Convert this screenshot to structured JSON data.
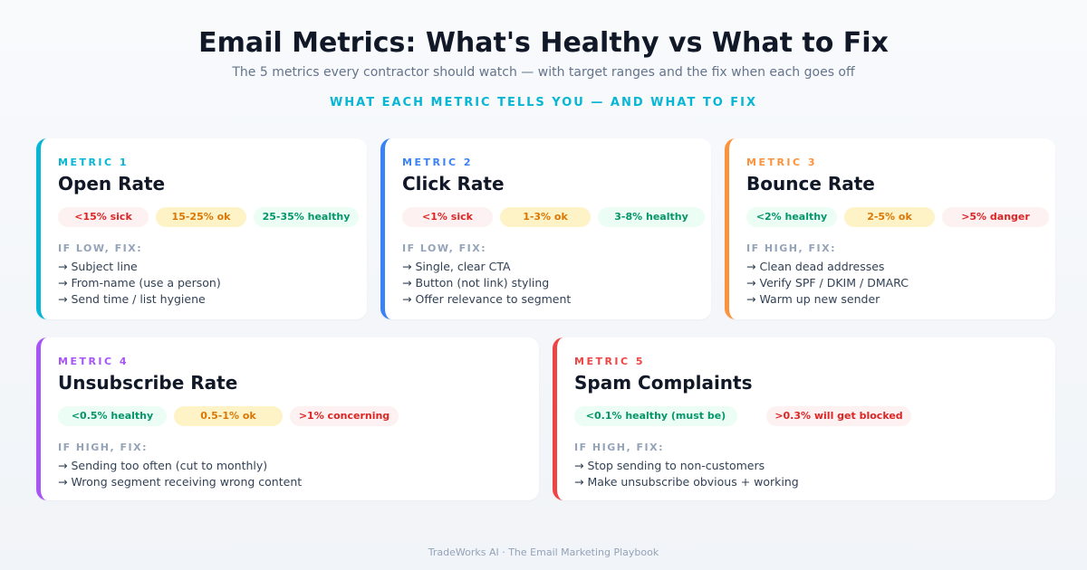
{
  "header": {
    "title": "Email Metrics: What's Healthy vs What to Fix",
    "subtitle": "The 5 metrics every contractor should watch — with target ranges and the fix when each goes off",
    "section_label": "WHAT EACH METRIC TELLS YOU — AND WHAT TO FIX"
  },
  "colors": {
    "metric1": "#06b6d4",
    "metric2": "#3b82f6",
    "metric3": "#fb923c",
    "metric4": "#a855f7",
    "metric5": "#ef4444",
    "sick": "#dc2626",
    "ok": "#d97706",
    "healthy": "#059669"
  },
  "metrics": [
    {
      "kicker": "METRIC 1",
      "title": "Open Rate",
      "pills": [
        "<15% sick",
        "15-25% ok",
        "25-35% healthy"
      ],
      "fix_label": "IF LOW, FIX:",
      "fixes": [
        "Subject line",
        "From-name (use a person)",
        "Send time / list hygiene"
      ]
    },
    {
      "kicker": "METRIC 2",
      "title": "Click Rate",
      "pills": [
        "<1% sick",
        "1-3% ok",
        "3-8% healthy"
      ],
      "fix_label": "IF LOW, FIX:",
      "fixes": [
        "Single, clear CTA",
        "Button (not link) styling",
        "Offer relevance to segment"
      ]
    },
    {
      "kicker": "METRIC 3",
      "title": "Bounce Rate",
      "pills": [
        "<2% healthy",
        "2-5% ok",
        ">5% danger"
      ],
      "fix_label": "IF HIGH, FIX:",
      "fixes": [
        "Clean dead addresses",
        "Verify SPF / DKIM / DMARC",
        "Warm up new sender"
      ]
    },
    {
      "kicker": "METRIC 4",
      "title": "Unsubscribe Rate",
      "pills": [
        "<0.5% healthy",
        "0.5-1% ok",
        ">1% concerning"
      ],
      "fix_label": "IF HIGH, FIX:",
      "fixes": [
        "Sending too often (cut to monthly)",
        "Wrong segment receiving wrong content"
      ]
    },
    {
      "kicker": "METRIC 5",
      "title": "Spam Complaints",
      "pills": [
        "<0.1% healthy (must be)",
        ">0.3% will get blocked"
      ],
      "fix_label": "IF HIGH, FIX:",
      "fixes": [
        "Stop sending to non-customers",
        "Make unsubscribe obvious + working"
      ]
    }
  ],
  "footer": "TradeWorks AI · The Email Marketing Playbook"
}
